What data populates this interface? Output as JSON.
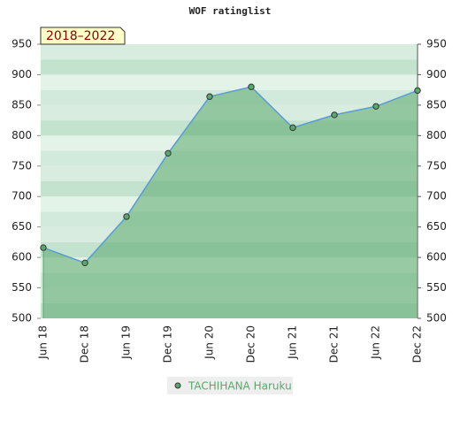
{
  "chart_data": {
    "type": "area",
    "title": "WOF ratinglist",
    "badge": "2018–2022",
    "categories": [
      "Jun 18",
      "Dec 18",
      "Jun 19",
      "Dec 19",
      "Jun 20",
      "Dec 20",
      "Jun 21",
      "Dec 21",
      "Jun 22",
      "Dec 22"
    ],
    "series": [
      {
        "name": "TACHIHANA Haruku",
        "color": "#5aa86c",
        "line_color": "#5b9bd5",
        "values": [
          616,
          591,
          667,
          771,
          864,
          880,
          813,
          834,
          848,
          874
        ]
      }
    ],
    "ylim": [
      500,
      950
    ],
    "yticks": [
      500,
      550,
      600,
      650,
      700,
      750,
      800,
      850,
      900,
      950
    ],
    "y2lim": [
      500,
      950
    ],
    "y2ticks": [
      500,
      550,
      600,
      650,
      700,
      750,
      800,
      850,
      900,
      950
    ],
    "grid": true
  }
}
